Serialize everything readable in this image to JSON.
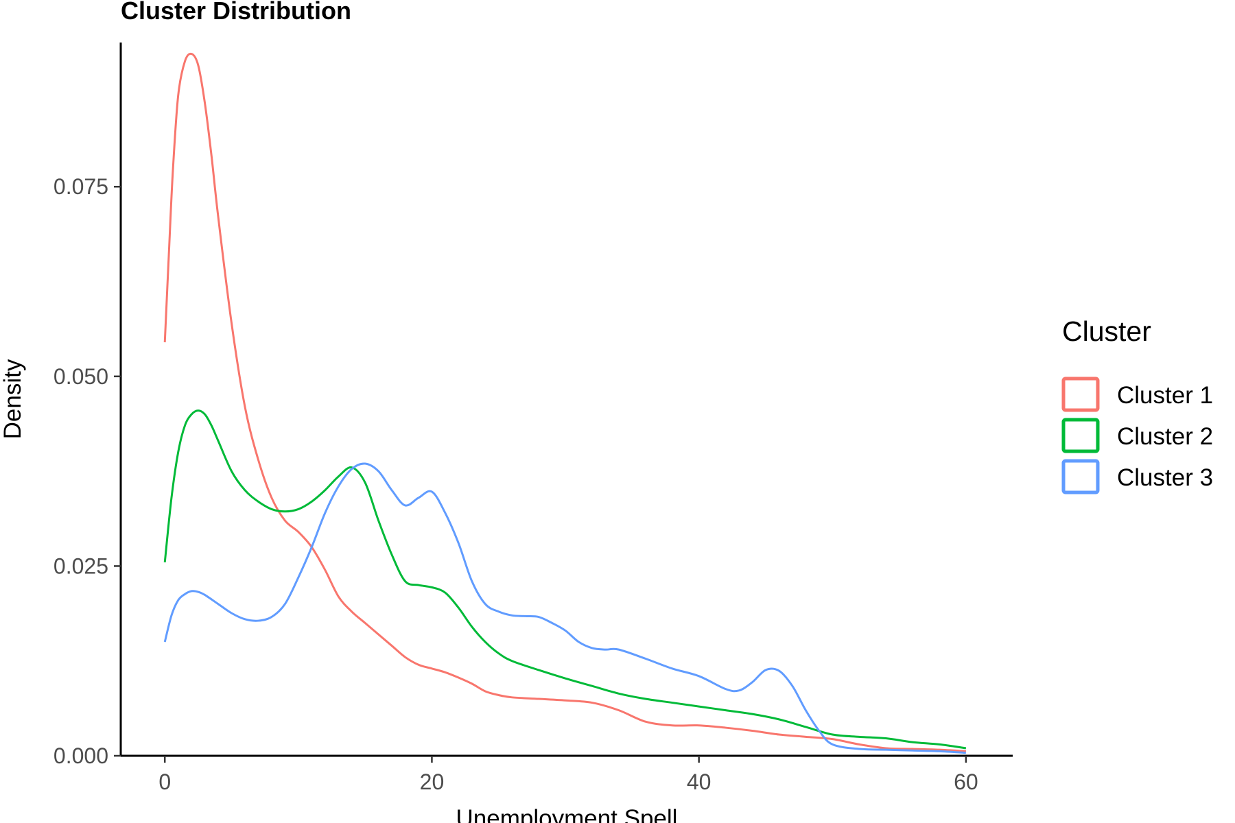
{
  "chart_data": {
    "type": "line",
    "title": "Cluster Distribution",
    "xlabel": "Unemployment Spell",
    "ylabel": "Density",
    "xlim": [
      -3.3,
      63.5
    ],
    "ylim": [
      0,
      0.094
    ],
    "x_ticks": [
      0,
      20,
      40,
      60
    ],
    "x_tick_labels": [
      "0",
      "20",
      "40",
      "60"
    ],
    "y_ticks": [
      0,
      0.025,
      0.05,
      0.075
    ],
    "y_tick_labels": [
      "0.000",
      "0.025",
      "0.050",
      "0.075"
    ],
    "grid": false,
    "legend": {
      "title": "Cluster",
      "position": "right"
    },
    "series": [
      {
        "name": "Cluster 1",
        "color": "#F8766D",
        "x": [
          0,
          0.3,
          0.6,
          1,
          1.5,
          2,
          2.5,
          3,
          3.5,
          4,
          5,
          6,
          7,
          8,
          9,
          10,
          11,
          12,
          13,
          14,
          15,
          16,
          17,
          18,
          19,
          20,
          21,
          22,
          23,
          24,
          25,
          26,
          28,
          30,
          32,
          34,
          36,
          38,
          40,
          42,
          44,
          46,
          48,
          50,
          52,
          54,
          56,
          58,
          60
        ],
        "y": [
          0.0545,
          0.066,
          0.077,
          0.087,
          0.0915,
          0.0925,
          0.091,
          0.086,
          0.079,
          0.071,
          0.057,
          0.046,
          0.039,
          0.034,
          0.031,
          0.0295,
          0.0275,
          0.0245,
          0.021,
          0.019,
          0.0175,
          0.016,
          0.0145,
          0.013,
          0.012,
          0.0115,
          0.011,
          0.0103,
          0.0095,
          0.0085,
          0.008,
          0.0077,
          0.0075,
          0.0073,
          0.007,
          0.006,
          0.0045,
          0.004,
          0.004,
          0.0037,
          0.0033,
          0.0028,
          0.0025,
          0.0022,
          0.0015,
          0.001,
          0.0009,
          0.0008,
          0.0006
        ]
      },
      {
        "name": "Cluster 2",
        "color": "#00BA38",
        "x": [
          0,
          0.5,
          1,
          1.5,
          2,
          2.5,
          3,
          3.5,
          4,
          5,
          6,
          7,
          8,
          9,
          10,
          11,
          12,
          13,
          14,
          15,
          16,
          17,
          18,
          19,
          20,
          21,
          22,
          23,
          24,
          25,
          26,
          28,
          30,
          32,
          34,
          36,
          38,
          40,
          42,
          44,
          46,
          48,
          50,
          52,
          54,
          56,
          58,
          60
        ],
        "y": [
          0.0255,
          0.034,
          0.04,
          0.0435,
          0.045,
          0.0455,
          0.045,
          0.0435,
          0.0415,
          0.0375,
          0.035,
          0.0335,
          0.0325,
          0.0322,
          0.0325,
          0.0335,
          0.035,
          0.0368,
          0.038,
          0.036,
          0.031,
          0.0265,
          0.023,
          0.0225,
          0.0222,
          0.0215,
          0.0195,
          0.017,
          0.015,
          0.0135,
          0.0125,
          0.0113,
          0.0102,
          0.0092,
          0.0082,
          0.0075,
          0.007,
          0.0065,
          0.006,
          0.0055,
          0.0048,
          0.0038,
          0.0028,
          0.0025,
          0.0023,
          0.0018,
          0.0015,
          0.001
        ]
      },
      {
        "name": "Cluster 3",
        "color": "#619CFF",
        "x": [
          0,
          0.5,
          1,
          1.5,
          2,
          2.5,
          3,
          4,
          5,
          6,
          7,
          8,
          9,
          10,
          11,
          12,
          13,
          14,
          15,
          16,
          17,
          18,
          19,
          20,
          21,
          22,
          23,
          24,
          25,
          26,
          27,
          28,
          29,
          30,
          31,
          32,
          33,
          34,
          36,
          38,
          40,
          42,
          43,
          44,
          45,
          46,
          47,
          48,
          49,
          50,
          52,
          54,
          56,
          58,
          60
        ],
        "y": [
          0.015,
          0.0185,
          0.0205,
          0.0213,
          0.0217,
          0.0216,
          0.0212,
          0.02,
          0.0188,
          0.018,
          0.0178,
          0.0183,
          0.02,
          0.0235,
          0.0275,
          0.032,
          0.0355,
          0.0378,
          0.0385,
          0.0375,
          0.035,
          0.033,
          0.034,
          0.0348,
          0.032,
          0.028,
          0.023,
          0.02,
          0.019,
          0.0185,
          0.0184,
          0.0183,
          0.0175,
          0.0165,
          0.015,
          0.0142,
          0.014,
          0.014,
          0.0128,
          0.0115,
          0.0105,
          0.0088,
          0.0086,
          0.0097,
          0.0113,
          0.0112,
          0.0092,
          0.006,
          0.0033,
          0.0015,
          0.0009,
          0.0008,
          0.0007,
          0.0006,
          0.0004
        ]
      }
    ]
  }
}
